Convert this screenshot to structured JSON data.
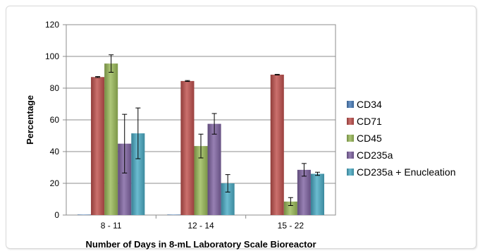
{
  "chart_data": {
    "type": "bar",
    "title": "",
    "xlabel": "Number of Days in 8-mL Laboratory Scale Bioreactor",
    "ylabel": "Percentage",
    "ylim": [
      0,
      120
    ],
    "yticks": [
      0,
      20,
      40,
      60,
      80,
      100,
      120
    ],
    "grid": true,
    "legend_position": "right",
    "categories": [
      "8 - 11",
      "12 - 14",
      "15 - 22"
    ],
    "series": [
      {
        "name": "CD34",
        "color": "#4a7ebb",
        "values": [
          0.3,
          0.3,
          0
        ],
        "errors": [
          0,
          0,
          0
        ]
      },
      {
        "name": "CD71",
        "color": "#c0504d",
        "values": [
          87,
          84.5,
          88.5
        ],
        "errors": [
          0.3,
          0.3,
          0.2
        ]
      },
      {
        "name": "CD45",
        "color": "#9bbb59",
        "values": [
          95.5,
          43.5,
          8.5
        ],
        "errors": [
          5.5,
          7.5,
          2.5
        ]
      },
      {
        "name": "CD235a",
        "color": "#8064a2",
        "values": [
          45,
          57.5,
          28.5
        ],
        "errors": [
          18.5,
          6.5,
          4
        ]
      },
      {
        "name": "CD235a + Enucleation",
        "color": "#4bacc6",
        "values": [
          51.5,
          20,
          26
        ],
        "errors": [
          16,
          5.5,
          1
        ]
      }
    ]
  }
}
